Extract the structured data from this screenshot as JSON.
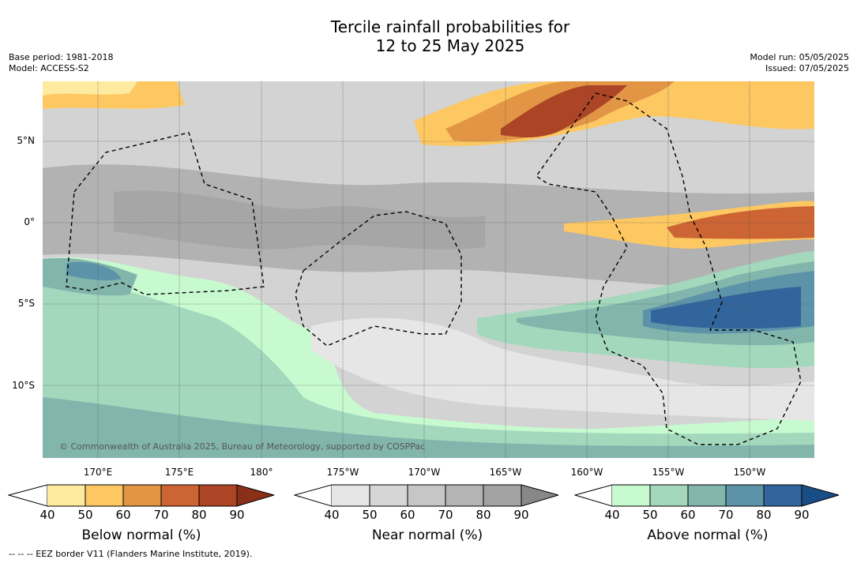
{
  "title_line1": "Tercile rainfall probabilities for",
  "title_line2": "12 to 25 May 2025",
  "meta_left": [
    "Base period: 1981-2018",
    "Model: ACCESS-S2"
  ],
  "meta_right": [
    "Model run: 05/05/2025",
    "Issued: 07/05/2025"
  ],
  "lat_labels": [
    "5°N",
    "0°",
    "5°S",
    "10°S"
  ],
  "lon_labels": [
    "170°E",
    "175°E",
    "180°",
    "175°W",
    "170°W",
    "165°W",
    "160°W",
    "155°W",
    "150°W"
  ],
  "copyright": "© Commonwealth of Australia 2025, Bureau of Meteorology, supported by COSPPac",
  "colorbars": [
    {
      "title": "Below normal (%)",
      "ticks": [
        "40",
        "50",
        "60",
        "70",
        "80",
        "90"
      ],
      "colors": [
        "#ffeba0",
        "#fdc862",
        "#e19545",
        "#cc6433",
        "#ac4426",
        "#8a2f18"
      ]
    },
    {
      "title": "Near normal (%)",
      "ticks": [
        "40",
        "50",
        "60",
        "70",
        "80",
        "90"
      ],
      "colors": [
        "#e6e6e6",
        "#d6d6d6",
        "#c6c6c6",
        "#b4b4b4",
        "#a3a3a3",
        "#888888"
      ]
    },
    {
      "title": "Above normal (%)",
      "ticks": [
        "40",
        "50",
        "60",
        "70",
        "80",
        "90"
      ],
      "colors": [
        "#c8fad0",
        "#a3d8bd",
        "#82b5ab",
        "#5c93a9",
        "#32659b",
        "#184d86"
      ]
    }
  ],
  "footnote": "--  --  -- EEZ border V11 (Flanders Marine Institute, 2019)."
}
